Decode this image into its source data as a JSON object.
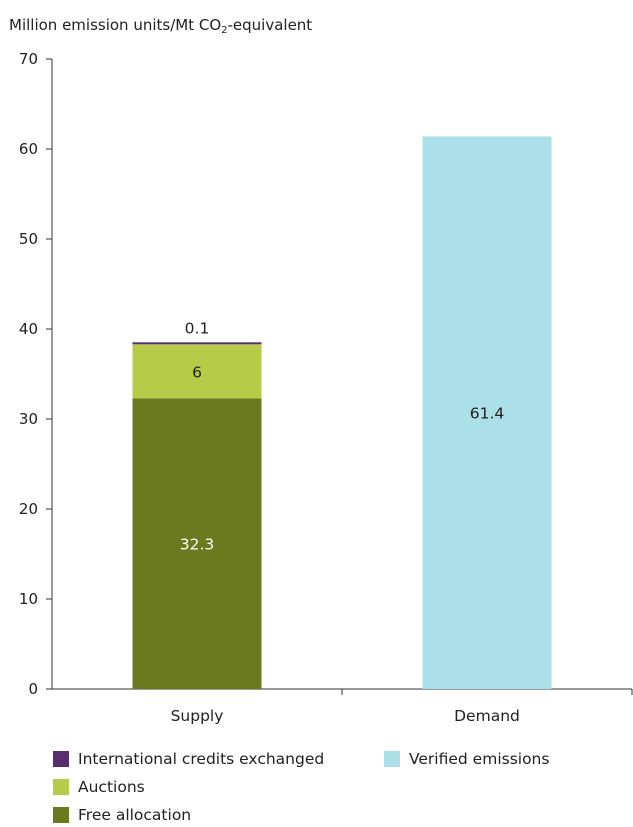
{
  "chart_data": {
    "type": "bar",
    "stacked": true,
    "ylabel": {
      "prefix": "Million emission units/Mt CO",
      "sub": "2",
      "suffix": "-equivalent"
    },
    "ylim": [
      0,
      70
    ],
    "yticks": [
      0,
      10,
      20,
      30,
      40,
      50,
      60,
      70
    ],
    "categories": [
      "Supply",
      "Demand"
    ],
    "series": [
      {
        "name": "Free allocation",
        "values": [
          32.3,
          null
        ],
        "color": "#6b7a1f",
        "label_color": "#ffffff"
      },
      {
        "name": "Auctions",
        "values": [
          6,
          null
        ],
        "color": "#b6cc48",
        "label_color": "#222222"
      },
      {
        "name": "International credits exchanged",
        "values": [
          0.1,
          null
        ],
        "color": "#5a2d6e",
        "label_color": "#222222",
        "label_above": true
      },
      {
        "name": "Verified emissions",
        "values": [
          null,
          61.4
        ],
        "color": "#abe0e8",
        "label_color": "#222222"
      }
    ],
    "data_labels": [
      [
        "32.3",
        "6",
        "0.1",
        null
      ],
      [
        null,
        null,
        null,
        "61.4"
      ]
    ],
    "legend": [
      {
        "name": "International credits exchanged",
        "color": "#5a2d6e",
        "row": 0,
        "col": 0
      },
      {
        "name": "Auctions",
        "color": "#b6cc48",
        "row": 1,
        "col": 0
      },
      {
        "name": "Free allocation",
        "color": "#6b7a1f",
        "row": 2,
        "col": 0
      },
      {
        "name": "Verified emissions",
        "color": "#abe0e8",
        "row": 0,
        "col": 1
      }
    ],
    "legend_position": "bottom",
    "grid": false
  }
}
